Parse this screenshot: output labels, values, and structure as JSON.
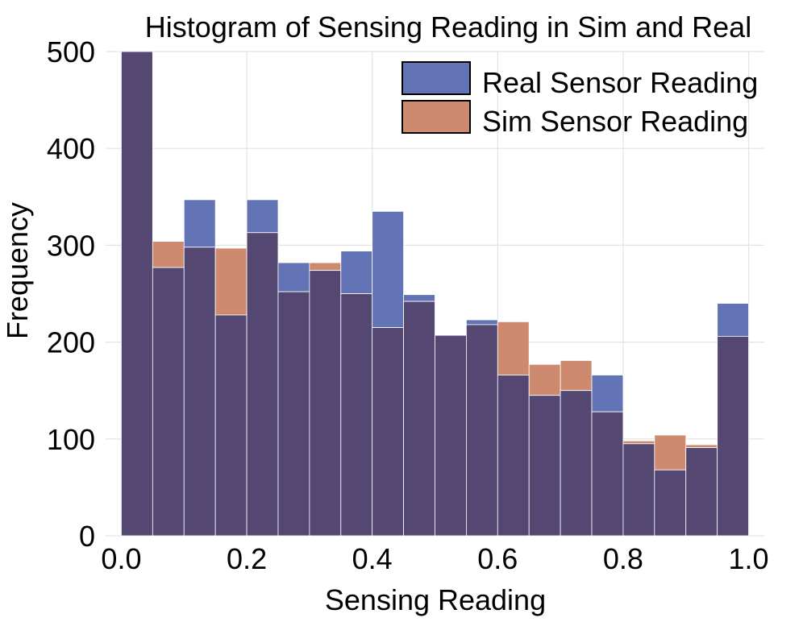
{
  "chart_data": {
    "type": "bar",
    "title": "Histogram of Sensing Reading in Sim and Real",
    "xlabel": "Sensing Reading",
    "ylabel": "Frequency",
    "xlim": [
      -0.025,
      1.025
    ],
    "ylim": [
      0,
      500
    ],
    "xticks": [
      0.0,
      0.2,
      0.4,
      0.6,
      0.8,
      1.0
    ],
    "xtick_labels": [
      "0.0",
      "0.2",
      "0.4",
      "0.6",
      "0.8",
      "1.0"
    ],
    "yticks": [
      0,
      100,
      200,
      300,
      400,
      500
    ],
    "ytick_labels": [
      "0",
      "100",
      "200",
      "300",
      "400",
      "500"
    ],
    "grid": true,
    "legend_position": "top-right",
    "bin_edges": [
      0.0,
      0.05,
      0.1,
      0.15,
      0.2,
      0.25,
      0.3,
      0.35,
      0.4,
      0.45,
      0.5,
      0.55,
      0.6,
      0.65,
      0.7,
      0.75,
      0.8,
      0.85,
      0.9,
      0.95,
      1.0
    ],
    "series": [
      {
        "name": "Real Sensor Reading",
        "color": "#6374b6",
        "values": [
          500,
          277,
          347,
          228,
          347,
          282,
          274,
          294,
          335,
          249,
          207,
          223,
          166,
          145,
          150,
          166,
          95,
          68,
          91,
          240
        ]
      },
      {
        "name": "Sim Sensor Reading",
        "color": "#cd8a6e",
        "values": [
          500,
          304,
          298,
          297,
          313,
          252,
          282,
          250,
          215,
          242,
          207,
          218,
          221,
          177,
          181,
          128,
          98,
          104,
          94,
          206
        ]
      }
    ],
    "overlap_color": "#544873"
  }
}
